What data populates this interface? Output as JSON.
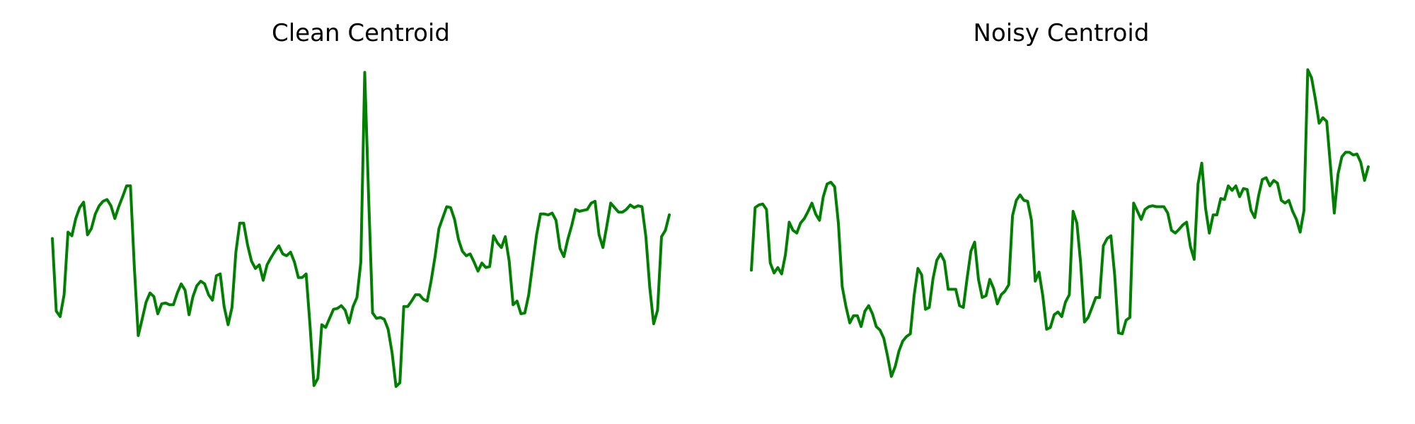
{
  "figure": {
    "line_color": "#008000",
    "background": "#ffffff"
  },
  "chart_data": [
    {
      "type": "line",
      "title": "Clean Centroid",
      "axes_visible": false,
      "grid": false,
      "legend": "none",
      "ylim": [
        -1.65,
        1.9
      ],
      "series": [
        {
          "values": [
            0.02,
            -0.78,
            -0.84,
            -0.6,
            0.09,
            0.05,
            0.24,
            0.36,
            0.42,
            0.06,
            0.13,
            0.29,
            0.38,
            0.43,
            0.45,
            0.38,
            0.24,
            0.37,
            0.48,
            0.6,
            0.6,
            -0.3,
            -1.05,
            -0.87,
            -0.68,
            -0.58,
            -0.62,
            -0.81,
            -0.7,
            -0.69,
            -0.71,
            -0.71,
            -0.58,
            -0.48,
            -0.55,
            -0.82,
            -0.62,
            -0.5,
            -0.45,
            -0.48,
            -0.6,
            -0.66,
            -0.39,
            -0.37,
            -0.73,
            -0.93,
            -0.74,
            -0.13,
            0.19,
            0.19,
            -0.05,
            -0.23,
            -0.31,
            -0.27,
            -0.44,
            -0.27,
            -0.19,
            -0.12,
            -0.06,
            -0.15,
            -0.17,
            -0.13,
            -0.24,
            -0.41,
            -0.41,
            -0.37,
            -0.95,
            -1.6,
            -1.52,
            -0.93,
            -0.96,
            -0.86,
            -0.76,
            -0.75,
            -0.72,
            -0.77,
            -0.91,
            -0.73,
            -0.63,
            -0.24,
            1.85,
            0.48,
            -0.8,
            -0.86,
            -0.85,
            -0.87,
            -0.98,
            -1.24,
            -1.61,
            -1.57,
            -0.73,
            -0.73,
            -0.67,
            -0.6,
            -0.6,
            -0.65,
            -0.67,
            -0.45,
            -0.18,
            0.13,
            0.25,
            0.37,
            0.36,
            0.23,
            0.01,
            -0.12,
            -0.17,
            -0.15,
            -0.24,
            -0.34,
            -0.25,
            -0.3,
            -0.29,
            0.05,
            -0.03,
            -0.08,
            0.04,
            -0.23,
            -0.71,
            -0.67,
            -0.81,
            -0.8,
            -0.6,
            -0.27,
            0.06,
            0.29,
            0.29,
            0.28,
            0.3,
            0.22,
            -0.09,
            -0.18,
            0.01,
            0.16,
            0.34,
            0.32,
            0.33,
            0.34,
            0.41,
            0.43,
            0.06,
            -0.08,
            0.16,
            0.41,
            0.36,
            0.31,
            0.31,
            0.34,
            0.39,
            0.36,
            0.38,
            0.37,
            0.04,
            -0.52,
            -0.92,
            -0.77,
            0.04,
            0.11,
            0.28
          ]
        }
      ]
    },
    {
      "type": "line",
      "title": "Noisy Centroid",
      "axes_visible": false,
      "grid": false,
      "legend": "none",
      "ylim": [
        -1.65,
        1.9
      ],
      "series": [
        {
          "values": [
            -0.33,
            0.36,
            0.39,
            0.4,
            0.34,
            -0.25,
            -0.36,
            -0.3,
            -0.37,
            -0.16,
            0.2,
            0.11,
            0.08,
            0.19,
            0.24,
            0.32,
            0.41,
            0.29,
            0.22,
            0.48,
            0.62,
            0.64,
            0.59,
            0.19,
            -0.51,
            -0.73,
            -0.91,
            -0.83,
            -0.83,
            -0.95,
            -0.78,
            -0.72,
            -0.81,
            -0.95,
            -0.99,
            -1.08,
            -1.28,
            -1.5,
            -1.39,
            -1.22,
            -1.11,
            -1.06,
            -1.03,
            -0.61,
            -0.31,
            -0.38,
            -0.76,
            -0.74,
            -0.42,
            -0.22,
            -0.15,
            -0.23,
            -0.54,
            -0.54,
            -0.54,
            -0.72,
            -0.74,
            -0.42,
            -0.12,
            -0.02,
            -0.43,
            -0.63,
            -0.61,
            -0.43,
            -0.53,
            -0.7,
            -0.6,
            -0.56,
            -0.49,
            0.27,
            0.44,
            0.5,
            0.44,
            0.43,
            0.22,
            -0.45,
            -0.35,
            -0.61,
            -0.98,
            -0.96,
            -0.82,
            -0.79,
            -0.84,
            -0.68,
            -0.6,
            0.32,
            0.19,
            -0.25,
            -0.9,
            -0.85,
            -0.74,
            -0.63,
            -0.63,
            -0.06,
            0.02,
            0.05,
            -0.39,
            -1.02,
            -1.03,
            -0.88,
            -0.85,
            0.41,
            0.32,
            0.23,
            0.34,
            0.37,
            0.38,
            0.37,
            0.37,
            0.37,
            0.3,
            0.11,
            0.08,
            0.12,
            0.17,
            0.2,
            -0.07,
            -0.21,
            0.62,
            0.85,
            0.35,
            0.08,
            0.28,
            0.28,
            0.46,
            0.45,
            0.6,
            0.55,
            0.6,
            0.48,
            0.57,
            0.56,
            0.33,
            0.25,
            0.49,
            0.67,
            0.69,
            0.6,
            0.66,
            0.63,
            0.44,
            0.41,
            0.44,
            0.32,
            0.23,
            0.09,
            0.33,
            1.88,
            1.79,
            1.56,
            1.29,
            1.35,
            1.31,
            0.82,
            0.3,
            0.73,
            0.92,
            0.97,
            0.97,
            0.94,
            0.95,
            0.86,
            0.66,
            0.81
          ]
        }
      ]
    }
  ]
}
